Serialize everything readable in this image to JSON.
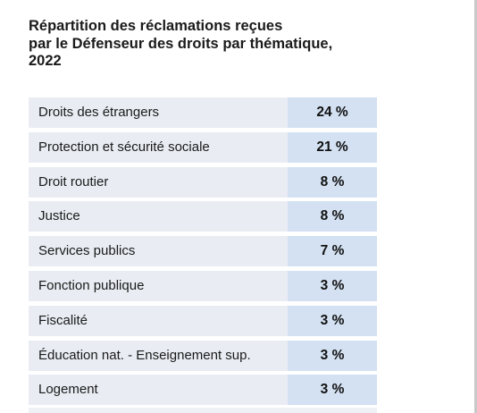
{
  "chart_data": {
    "type": "table",
    "title_lines": [
      "Répartition des réclamations reçues",
      "par le Défenseur des droits par thématique,",
      "2022"
    ],
    "rows": [
      {
        "label": "Droits des étrangers",
        "value": 24,
        "display": "24 %"
      },
      {
        "label": "Protection et sécurité sociale",
        "value": 21,
        "display": "21 %"
      },
      {
        "label": "Droit routier",
        "value": 8,
        "display": "8 %"
      },
      {
        "label": "Justice",
        "value": 8,
        "display": "8 %"
      },
      {
        "label": "Services publics",
        "value": 7,
        "display": "7 %"
      },
      {
        "label": "Fonction publique",
        "value": 3,
        "display": "3 %"
      },
      {
        "label": "Fiscalité",
        "value": 3,
        "display": "3 %"
      },
      {
        "label": "Éducation nat. - Enseignement sup.",
        "value": 3,
        "display": "3 %"
      },
      {
        "label": "Logement",
        "value": 3,
        "display": "3 %"
      }
    ],
    "colors": {
      "label_cell": "#e9edf3",
      "value_cell": "#d3e1f2",
      "text": "#1a1a1a"
    }
  }
}
